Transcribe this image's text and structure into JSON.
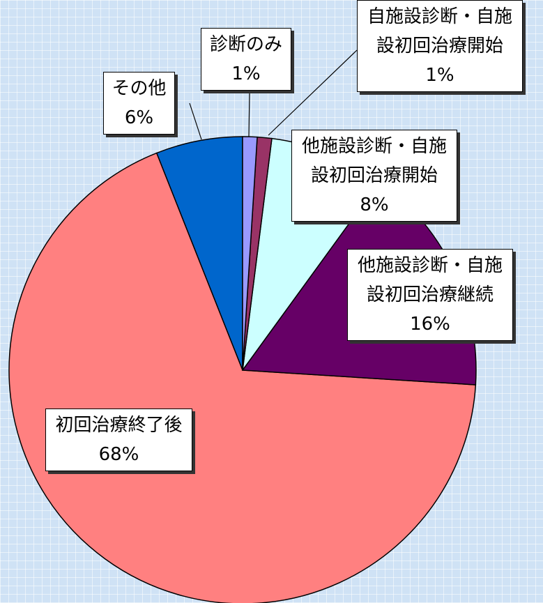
{
  "chart_data": {
    "type": "pie",
    "categories": [
      "診断のみ",
      "自施設診断・自施設初回治療開始",
      "他施設診断・自施設初回治療開始",
      "他施設診断・自施設初回治療継続",
      "初回治療終了後",
      "その他"
    ],
    "values": [
      1,
      1,
      8,
      16,
      68,
      6
    ],
    "value_labels": [
      "1%",
      "1%",
      "8%",
      "16%",
      "68%",
      "6%"
    ],
    "colors": [
      "#9999ff",
      "#993366",
      "#ccffff",
      "#660066",
      "#ff8080",
      "#0066cc"
    ]
  }
}
